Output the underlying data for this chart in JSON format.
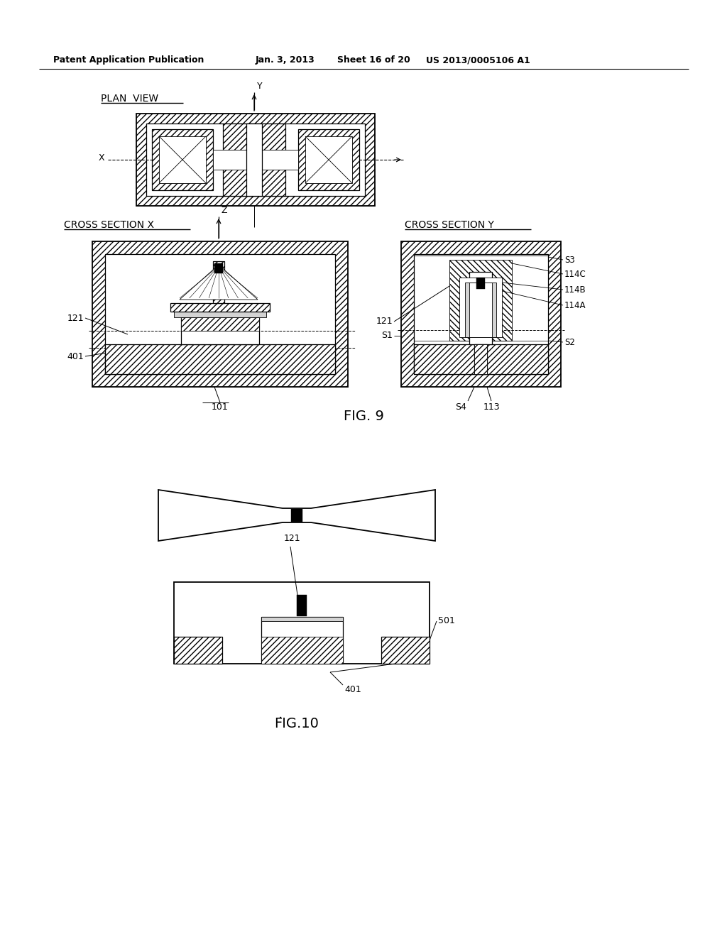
{
  "bg_color": "#ffffff",
  "header_text": "Patent Application Publication",
  "header_date": "Jan. 3, 2013",
  "header_sheet": "Sheet 16 of 20",
  "header_patent": "US 2013/0005106 A1",
  "fig9_label": "FIG. 9",
  "fig10_label": "FIG.10"
}
